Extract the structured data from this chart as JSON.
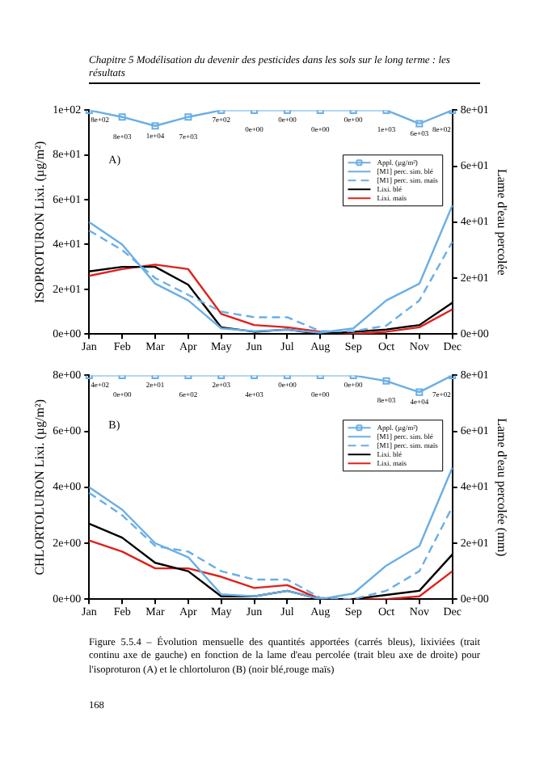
{
  "chart_data": [
    {
      "type": "line",
      "title": "A)",
      "ylabel": "ISOPROTURON Lixi. (µg/m²)",
      "y2label": "Lame d'eau percolée",
      "annotations": [
        "Chapitre 5 Modélisation du devenir des pesticides dans les sols sur le long terme : les résultats",
        {
          "text": "8e+02",
          "x": "Jan",
          "y": 100
        },
        {
          "text": "8e+03",
          "x": "Feb",
          "y": 97
        },
        {
          "text": "1e+04",
          "x": "Mar",
          "y": 93
        },
        {
          "text": "7e+03",
          "x": "Apr",
          "y": 97
        },
        {
          "text": "7e+02",
          "x": "May",
          "y": 100
        },
        {
          "text": "0e+00",
          "x": "Jun",
          "y": 100
        },
        {
          "text": "0e+00",
          "x": "Jul",
          "y": 100
        },
        {
          "text": "0e+00",
          "x": "Aug",
          "y": 100
        },
        {
          "text": "0e+00",
          "x": "Sep",
          "y": 100
        },
        {
          "text": "1e+03",
          "x": "Oct",
          "y": 100
        },
        {
          "text": "6e+03",
          "x": "Nov",
          "y": 94
        },
        {
          "text": "8e+02",
          "x": "Dec",
          "y": 100
        }
      ],
      "categories": [
        "Jan",
        "Feb",
        "Mar",
        "Apr",
        "May",
        "Jun",
        "Jul",
        "Aug",
        "Sep",
        "Oct",
        "Nov",
        "Dec"
      ],
      "ylim": [
        0,
        100
      ],
      "yticks": [
        {
          "value": 0,
          "label": "0e+00"
        },
        {
          "value": 20,
          "label": "2e+01"
        },
        {
          "value": 40,
          "label": "4e+01"
        },
        {
          "value": 60,
          "label": "6e+01"
        },
        {
          "value": 80,
          "label": "8e+01"
        },
        {
          "value": 100,
          "label": "1e+02"
        }
      ],
      "y2lim": [
        0,
        80
      ],
      "y2ticks": [
        {
          "value": 0,
          "label": "0e+00"
        },
        {
          "value": 20,
          "label": "2e+01"
        },
        {
          "value": 40,
          "label": "4e+01"
        },
        {
          "value": 60,
          "label": "6e+01"
        },
        {
          "value": 80,
          "label": "8e+01"
        }
      ],
      "legend": "top right",
      "series": [
        {
          "name": "Appl. (µg/m²)",
          "color": "#6aaee6",
          "marker": "square",
          "values": [
            100,
            97,
            93,
            97,
            100,
            100,
            100,
            100,
            100,
            100,
            94,
            100
          ]
        },
        {
          "name": "[M1] perc. sim. blé",
          "color": "#6aaee6",
          "axis": "y2",
          "marker": "none",
          "line_style": "solid",
          "values": [
            40,
            32,
            18,
            12,
            2,
            1,
            1.5,
            0.5,
            2,
            12,
            18,
            46
          ]
        },
        {
          "name": "[M1] perc. sim. maïs",
          "color": "#6aaee6",
          "axis": "y2",
          "marker": "none",
          "line_style": "dashed",
          "values": [
            37,
            30,
            20,
            14,
            8,
            6,
            6,
            1,
            1,
            3,
            12,
            33
          ]
        },
        {
          "name": "Lixi. blé",
          "color": "#000000",
          "marker": "none",
          "line_style": "solid",
          "values": [
            28,
            30,
            30,
            22,
            3,
            1,
            2,
            0,
            1,
            2,
            4,
            14
          ]
        },
        {
          "name": "Lixi. maïs",
          "color": "#e0201b",
          "marker": "none",
          "line_style": "solid",
          "values": [
            26,
            29,
            31,
            29,
            9,
            4,
            3,
            1,
            0,
            1,
            3,
            11
          ]
        }
      ]
    },
    {
      "type": "line",
      "title": "B)",
      "ylabel": "CHLORTOLURON Lixi. (µg/m²)",
      "y2label": "Lame d'eau percolée (mm)",
      "annotations": [
        "Figure 5.5.4 – Évolution mensuelle des quantités apportées (carrés bleus), lixiviées (trait continu axe de gauche) en fonction de la lame d'eau percolée (trait bleu axe de droite) pour l'isoproturon (A) et le chlortoluron (B) (noir blé,rouge maïs)",
        "168",
        {
          "text": "4e+02",
          "x": "Jan",
          "y": 8
        },
        {
          "text": "0e+00",
          "x": "Feb",
          "y": 8
        },
        {
          "text": "2e+01",
          "x": "Mar",
          "y": 8
        },
        {
          "text": "6e+02",
          "x": "Apr",
          "y": 8
        },
        {
          "text": "2e+03",
          "x": "May",
          "y": 8
        },
        {
          "text": "4e+03",
          "x": "Jun",
          "y": 8
        },
        {
          "text": "0e+00",
          "x": "Jul",
          "y": 8
        },
        {
          "text": "0e+00",
          "x": "Aug",
          "y": 8
        },
        {
          "text": "0e+00",
          "x": "Sep",
          "y": 8
        },
        {
          "text": "8e+03",
          "x": "Oct",
          "y": 7.8
        },
        {
          "text": "4e+04",
          "x": "Nov",
          "y": 7.4
        },
        {
          "text": "7e+02",
          "x": "Dec",
          "y": 8
        }
      ],
      "categories": [
        "Jan",
        "Feb",
        "Mar",
        "Apr",
        "May",
        "Jun",
        "Jul",
        "Aug",
        "Sep",
        "Oct",
        "Nov",
        "Dec"
      ],
      "ylim": [
        0,
        8
      ],
      "yticks": [
        {
          "value": 0,
          "label": "0e+00"
        },
        {
          "value": 2,
          "label": "2e+00"
        },
        {
          "value": 4,
          "label": "4e+00"
        },
        {
          "value": 6,
          "label": "6e+00"
        },
        {
          "value": 8,
          "label": "8e+00"
        }
      ],
      "y2lim": [
        0,
        80
      ],
      "y2ticks": [
        {
          "value": 0,
          "label": "0e+00"
        },
        {
          "value": 20,
          "label": "2e+01"
        },
        {
          "value": 40,
          "label": "4e+01"
        },
        {
          "value": 60,
          "label": "6e+01"
        },
        {
          "value": 80,
          "label": "8e+01"
        }
      ],
      "legend": "top right",
      "series": [
        {
          "name": "Appl. (µg/m²)",
          "color": "#6aaee6",
          "marker": "square",
          "values": [
            8,
            8,
            8,
            8,
            8,
            8,
            8,
            8,
            8,
            7.8,
            7.4,
            8
          ]
        },
        {
          "name": "[M1] perc. sim. blé",
          "color": "#6aaee6",
          "axis": "y2",
          "marker": "none",
          "line_style": "solid",
          "values": [
            40,
            32,
            20,
            15,
            1.7,
            1,
            3,
            0,
            2,
            12,
            19,
            47
          ]
        },
        {
          "name": "[M1] perc. sim. maïs",
          "color": "#6aaee6",
          "axis": "y2",
          "marker": "none",
          "line_style": "dashed",
          "values": [
            38,
            30,
            19,
            17,
            10,
            7,
            7,
            0.5,
            0,
            3,
            10,
            33
          ]
        },
        {
          "name": "Lixi. blé",
          "color": "#000000",
          "marker": "none",
          "line_style": "solid",
          "values": [
            2.7,
            2.2,
            1.3,
            1,
            0.1,
            0.1,
            0.3,
            0,
            0,
            0.15,
            0.3,
            1.6
          ]
        },
        {
          "name": "Lixi. maïs",
          "color": "#e0201b",
          "marker": "none",
          "line_style": "solid",
          "values": [
            2.1,
            1.7,
            1.1,
            1.1,
            0.8,
            0.4,
            0.5,
            0,
            0,
            0,
            0.1,
            1
          ]
        }
      ]
    }
  ]
}
